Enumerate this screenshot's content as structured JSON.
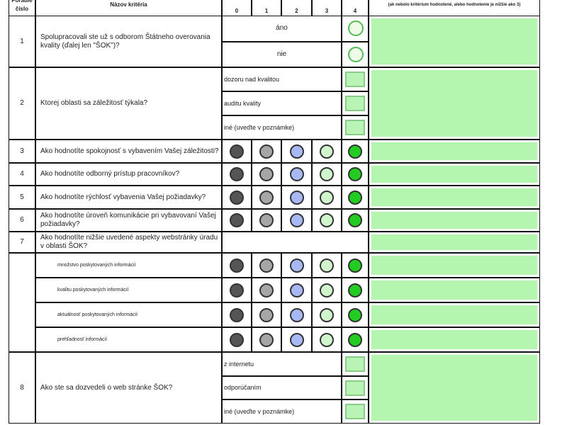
{
  "header": {
    "order": "Poradie číslo",
    "criterion": "Názov kritéria",
    "scores": [
      "0",
      "1",
      "2",
      "3",
      "4"
    ],
    "note": "(ak nebolo kritérium hodnotené, alebo hodnotenie je nižšie ako 3)"
  },
  "colors": {
    "score0": "#555555",
    "score1": "#a6a6a6",
    "score2": "#a8b8f5",
    "score3": "#d0f5cc",
    "score4": "#22cc22",
    "note_bg": "#b4f5b0"
  },
  "rows": [
    {
      "num": "1",
      "text": "Spolupracovali ste už s odborom Štátneho overovania kvality (ďalej len \"ŠOK\")?",
      "type": "radio",
      "options": [
        "áno",
        "nie"
      ]
    },
    {
      "num": "2",
      "text": "Ktorej oblasti sa záležitosť týkala?",
      "type": "check",
      "options": [
        "dozoru nad kvalitou",
        "auditu kvality",
        "iné (uveďte v poznámke)"
      ]
    },
    {
      "num": "3",
      "text": "Ako hodnotíte spokojnosť s vybavením Vašej záležitosti?",
      "type": "scale"
    },
    {
      "num": "4",
      "text": "Ako hodnotíte odborný prístup pracovníkov?",
      "type": "scale"
    },
    {
      "num": "5",
      "text": "Ako hodnotíte rýchlosť vybavenia Vašej požiadavky?",
      "type": "scale"
    },
    {
      "num": "6",
      "text": "Ako hodnotíte úroveň komunikácie pri vybavovaní Vašej požiadavky?",
      "type": "scale"
    },
    {
      "num": "7",
      "text": "Ako hodnotíte nižšie uvedené aspekty webstránky úradu v oblasti ŠOK?",
      "type": "blank"
    },
    {
      "num": "",
      "text": "množstvo poskytovaných informácií",
      "type": "subscale"
    },
    {
      "num": "",
      "text": "kvalitu poskytovaných informácií",
      "type": "subscale"
    },
    {
      "num": "",
      "text": "aktuálnosť poskytovaných informácií",
      "type": "subscale"
    },
    {
      "num": "",
      "text": "prehľadnosť informácií",
      "type": "subscale"
    },
    {
      "num": "8",
      "text": "Ako ste sa dozvedeli o web stránke ŠOK?",
      "type": "check",
      "options": [
        "z internetu",
        "odporúčaním",
        "iné (uveďte v poznámke)"
      ]
    }
  ]
}
